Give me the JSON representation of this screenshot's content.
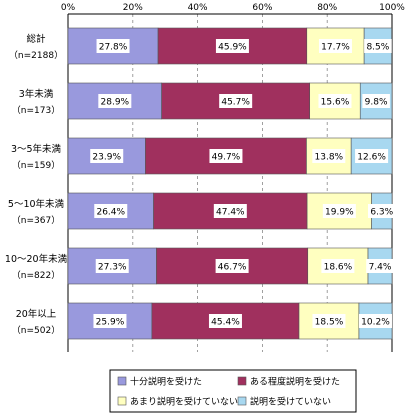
{
  "chart_data": {
    "type": "bar",
    "orientation": "horizontal",
    "stacked": true,
    "percent_stacked": true,
    "xlim": [
      0,
      100
    ],
    "x_ticks": [
      "0%",
      "20%",
      "40%",
      "60%",
      "80%",
      "100%"
    ],
    "categories": [
      {
        "label": "総計",
        "n": "（n=2188）"
      },
      {
        "label": "3年未満",
        "n": "（n=173）"
      },
      {
        "label": "3～5年未満",
        "n": "（n=159）"
      },
      {
        "label": "5～10年未満",
        "n": "（n=367）"
      },
      {
        "label": "10～20年未満",
        "n": "（n=822）"
      },
      {
        "label": "20年以上",
        "n": "（n=502）"
      }
    ],
    "series": [
      {
        "name": "十分説明を受けた",
        "color": "#9999dd",
        "values": [
          27.8,
          28.9,
          23.9,
          26.4,
          27.3,
          25.9
        ],
        "labels": [
          "27.8%",
          "28.9%",
          "23.9%",
          "26.4%",
          "27.3%",
          "25.9%"
        ]
      },
      {
        "name": "ある程度説明を受けた",
        "color": "#a0305e",
        "values": [
          45.9,
          45.7,
          49.7,
          47.4,
          46.7,
          45.4
        ],
        "labels": [
          "45.9%",
          "45.7%",
          "49.7%",
          "47.4%",
          "46.7%",
          "45.4%"
        ]
      },
      {
        "name": "あまり説明を受けていない",
        "color": "#ffffc0",
        "values": [
          17.7,
          15.6,
          13.8,
          19.9,
          18.6,
          18.5
        ],
        "labels": [
          "17.7%",
          "15.6%",
          "13.8%",
          "19.9%",
          "18.6%",
          "18.5%"
        ]
      },
      {
        "name": "説明を受けていない",
        "color": "#a8d8f0",
        "values": [
          8.5,
          9.8,
          12.6,
          6.3,
          7.4,
          10.2
        ],
        "labels": [
          "8.5%",
          "9.8%",
          "12.6%",
          "6.3%",
          "7.4%",
          "10.2%"
        ]
      }
    ],
    "legend_position": "bottom",
    "grid": "vertical dashed"
  }
}
